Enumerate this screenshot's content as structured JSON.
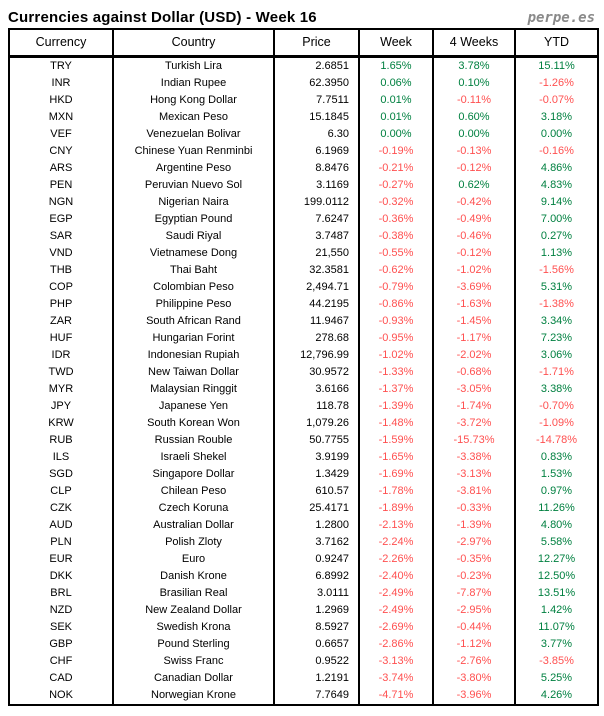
{
  "header": {
    "title": "Currencies against Dollar (USD) - Week 16",
    "brand": "perpe.es"
  },
  "chart_data": {
    "type": "table",
    "title": "Currencies against Dollar (USD) - Week 16",
    "columns": [
      "Currency",
      "Country",
      "Price",
      "Week",
      "4 Weeks",
      "YTD"
    ],
    "positive_color": "#008040",
    "negative_color": "#ff5050",
    "rows": [
      {
        "code": "TRY",
        "country": "Turkish Lira",
        "price": "2.6851",
        "week": "1.65%",
        "weeks4": "3.78%",
        "ytd": "15.11%"
      },
      {
        "code": "INR",
        "country": "Indian Rupee",
        "price": "62.3950",
        "week": "0.06%",
        "weeks4": "0.10%",
        "ytd": "-1.26%"
      },
      {
        "code": "HKD",
        "country": "Hong Kong Dollar",
        "price": "7.7511",
        "week": "0.01%",
        "weeks4": "-0.11%",
        "ytd": "-0.07%"
      },
      {
        "code": "MXN",
        "country": "Mexican Peso",
        "price": "15.1845",
        "week": "0.01%",
        "weeks4": "0.60%",
        "ytd": "3.18%"
      },
      {
        "code": "VEF",
        "country": "Venezuelan Bolivar",
        "price": "6.30",
        "week": "0.00%",
        "weeks4": "0.00%",
        "ytd": "0.00%"
      },
      {
        "code": "CNY",
        "country": "Chinese Yuan Renminbi",
        "price": "6.1969",
        "week": "-0.19%",
        "weeks4": "-0.13%",
        "ytd": "-0.16%"
      },
      {
        "code": "ARS",
        "country": "Argentine Peso",
        "price": "8.8476",
        "week": "-0.21%",
        "weeks4": "-0.12%",
        "ytd": "4.86%"
      },
      {
        "code": "PEN",
        "country": "Peruvian Nuevo Sol",
        "price": "3.1169",
        "week": "-0.27%",
        "weeks4": "0.62%",
        "ytd": "4.83%"
      },
      {
        "code": "NGN",
        "country": "Nigerian Naira",
        "price": "199.0112",
        "week": "-0.32%",
        "weeks4": "-0.42%",
        "ytd": "9.14%"
      },
      {
        "code": "EGP",
        "country": "Egyptian Pound",
        "price": "7.6247",
        "week": "-0.36%",
        "weeks4": "-0.49%",
        "ytd": "7.00%"
      },
      {
        "code": "SAR",
        "country": "Saudi Riyal",
        "price": "3.7487",
        "week": "-0.38%",
        "weeks4": "-0.46%",
        "ytd": "0.27%"
      },
      {
        "code": "VND",
        "country": "Vietnamese Dong",
        "price": "21,550",
        "week": "-0.55%",
        "weeks4": "-0.12%",
        "ytd": "1.13%"
      },
      {
        "code": "THB",
        "country": "Thai Baht",
        "price": "32.3581",
        "week": "-0.62%",
        "weeks4": "-1.02%",
        "ytd": "-1.56%"
      },
      {
        "code": "COP",
        "country": "Colombian Peso",
        "price": "2,494.71",
        "week": "-0.79%",
        "weeks4": "-3.69%",
        "ytd": "5.31%"
      },
      {
        "code": "PHP",
        "country": "Philippine Peso",
        "price": "44.2195",
        "week": "-0.86%",
        "weeks4": "-1.63%",
        "ytd": "-1.38%"
      },
      {
        "code": "ZAR",
        "country": "South African Rand",
        "price": "11.9467",
        "week": "-0.93%",
        "weeks4": "-1.45%",
        "ytd": "3.34%"
      },
      {
        "code": "HUF",
        "country": "Hungarian Forint",
        "price": "278.68",
        "week": "-0.95%",
        "weeks4": "-1.17%",
        "ytd": "7.23%"
      },
      {
        "code": "IDR",
        "country": "Indonesian Rupiah",
        "price": "12,796.99",
        "week": "-1.02%",
        "weeks4": "-2.02%",
        "ytd": "3.06%"
      },
      {
        "code": "TWD",
        "country": "New Taiwan Dollar",
        "price": "30.9572",
        "week": "-1.33%",
        "weeks4": "-0.68%",
        "ytd": "-1.71%"
      },
      {
        "code": "MYR",
        "country": "Malaysian Ringgit",
        "price": "3.6166",
        "week": "-1.37%",
        "weeks4": "-3.05%",
        "ytd": "3.38%"
      },
      {
        "code": "JPY",
        "country": "Japanese Yen",
        "price": "118.78",
        "week": "-1.39%",
        "weeks4": "-1.74%",
        "ytd": "-0.70%"
      },
      {
        "code": "KRW",
        "country": "South Korean Won",
        "price": "1,079.26",
        "week": "-1.48%",
        "weeks4": "-3.72%",
        "ytd": "-1.09%"
      },
      {
        "code": "RUB",
        "country": "Russian Rouble",
        "price": "50.7755",
        "week": "-1.59%",
        "weeks4": "-15.73%",
        "ytd": "-14.78%"
      },
      {
        "code": "ILS",
        "country": "Israeli Shekel",
        "price": "3.9199",
        "week": "-1.65%",
        "weeks4": "-3.38%",
        "ytd": "0.83%"
      },
      {
        "code": "SGD",
        "country": "Singapore Dollar",
        "price": "1.3429",
        "week": "-1.69%",
        "weeks4": "-3.13%",
        "ytd": "1.53%"
      },
      {
        "code": "CLP",
        "country": "Chilean Peso",
        "price": "610.57",
        "week": "-1.78%",
        "weeks4": "-3.81%",
        "ytd": "0.97%"
      },
      {
        "code": "CZK",
        "country": "Czech Koruna",
        "price": "25.4171",
        "week": "-1.89%",
        "weeks4": "-0.33%",
        "ytd": "11.26%"
      },
      {
        "code": "AUD",
        "country": "Australian Dollar",
        "price": "1.2800",
        "week": "-2.13%",
        "weeks4": "-1.39%",
        "ytd": "4.80%"
      },
      {
        "code": "PLN",
        "country": "Polish Zloty",
        "price": "3.7162",
        "week": "-2.24%",
        "weeks4": "-2.97%",
        "ytd": "5.58%"
      },
      {
        "code": "EUR",
        "country": "Euro",
        "price": "0.9247",
        "week": "-2.26%",
        "weeks4": "-0.35%",
        "ytd": "12.27%"
      },
      {
        "code": "DKK",
        "country": "Danish Krone",
        "price": "6.8992",
        "week": "-2.40%",
        "weeks4": "-0.23%",
        "ytd": "12.50%"
      },
      {
        "code": "BRL",
        "country": "Brasilian Real",
        "price": "3.0111",
        "week": "-2.49%",
        "weeks4": "-7.87%",
        "ytd": "13.51%"
      },
      {
        "code": "NZD",
        "country": "New Zealand Dollar",
        "price": "1.2969",
        "week": "-2.49%",
        "weeks4": "-2.95%",
        "ytd": "1.42%"
      },
      {
        "code": "SEK",
        "country": "Swedish Krona",
        "price": "8.5927",
        "week": "-2.69%",
        "weeks4": "-0.44%",
        "ytd": "11.07%"
      },
      {
        "code": "GBP",
        "country": "Pound Sterling",
        "price": "0.6657",
        "week": "-2.86%",
        "weeks4": "-1.12%",
        "ytd": "3.77%"
      },
      {
        "code": "CHF",
        "country": "Swiss Franc",
        "price": "0.9522",
        "week": "-3.13%",
        "weeks4": "-2.76%",
        "ytd": "-3.85%"
      },
      {
        "code": "CAD",
        "country": "Canadian Dollar",
        "price": "1.2191",
        "week": "-3.74%",
        "weeks4": "-3.80%",
        "ytd": "5.25%"
      },
      {
        "code": "NOK",
        "country": "Norwegian Krone",
        "price": "7.7649",
        "week": "-4.71%",
        "weeks4": "-3.96%",
        "ytd": "4.26%"
      }
    ]
  }
}
